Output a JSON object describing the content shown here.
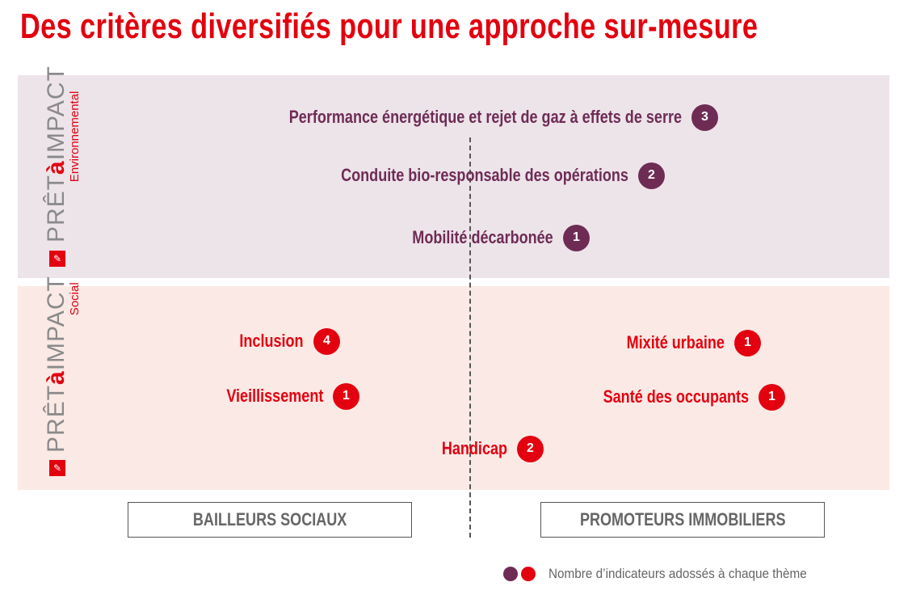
{
  "title": "Des critères diversifiés pour une approche sur-mesure",
  "environmental": {
    "brand_pre": "PRÊT",
    "brand_a": "à",
    "brand_post": "IMPACT",
    "subtitle": "Environnemental",
    "items": [
      {
        "label": "Performance énergétique et rejet de gaz à effets de serre",
        "count": "3"
      },
      {
        "label": "Conduite bio-responsable des opérations",
        "count": "2"
      },
      {
        "label": "Mobilité décarbonée",
        "count": "1"
      }
    ]
  },
  "social": {
    "brand_pre": "PRÊT",
    "brand_a": "à",
    "brand_post": "IMPACT",
    "subtitle": "Social",
    "items": [
      {
        "label": "Inclusion",
        "count": "4"
      },
      {
        "label": "Vieillissement",
        "count": "1"
      },
      {
        "label": "Handicap",
        "count": "2"
      },
      {
        "label": "Mixité urbaine",
        "count": "1"
      },
      {
        "label": "Santé des occupants",
        "count": "1"
      }
    ]
  },
  "categories": [
    "BAILLEURS SOCIAUX",
    "PROMOTEURS IMMOBILIERS"
  ],
  "legend": {
    "text": "Nombre d’indicateurs adossés à chaque thème"
  },
  "colors": {
    "purple": "#6e2c55",
    "red": "#e3000f",
    "env_bg": "#ede4ea",
    "social_bg": "#fbe9e5"
  }
}
